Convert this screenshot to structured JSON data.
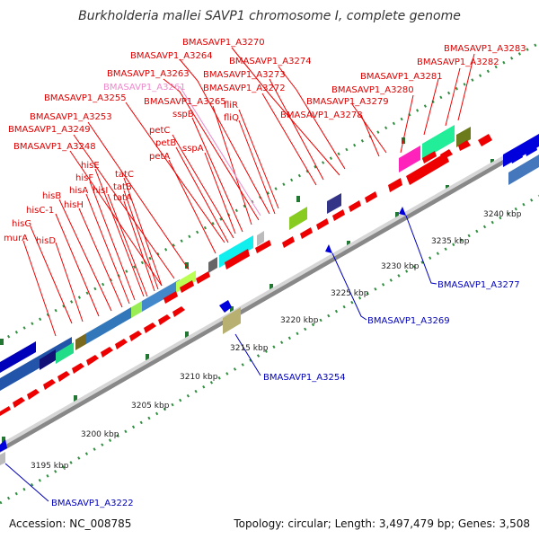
{
  "title": "Burkholderia mallei SAVP1 chromosome I, complete genome",
  "footer": {
    "accession": "Accession: NC_008785",
    "summary": "Topology: circular; Length: 3,497,479 bp; Genes: 3,508"
  },
  "colors": {
    "forward_gene": "#ee0000",
    "reverse_gene": "#0000cc",
    "red_label": "#dd0000",
    "blue_label": "#0000bb",
    "pink_label": "#ee88cc",
    "backbone": "#aaaaaa",
    "tick": "#228833"
  },
  "scale_labels": [
    "3195 kbp",
    "3200 kbp",
    "3205 kbp",
    "3210 kbp",
    "3215 kbp",
    "3220 kbp",
    "3225 kbp",
    "3230 kbp",
    "3235 kbp",
    "3240 kbp"
  ],
  "red_labels": [
    "BMASAVP1_A3270",
    "BMASAVP1_A3274",
    "BMASAVP1_A3264",
    "BMASAVP1_A3273",
    "BMASAVP1_A3263",
    "BMASAVP1_A3272",
    "BMASAVP1_A3261",
    "BMASAVP1_A3255",
    "BMASAVP1_A3265",
    "sspB",
    "BMASAVP1_A3253",
    "BMASAVP1_A3249",
    "BMASAVP1_A3248",
    "petC",
    "petB",
    "petA",
    "sspA",
    "fliR",
    "fliQ",
    "BMASAVP1_A3279",
    "BMASAVP1_A3278",
    "BMASAVP1_A3280",
    "BMASAVP1_A3281",
    "BMASAVP1_A3282",
    "BMASAVP1_A3283",
    "hisE",
    "hisF",
    "hisA",
    "hisI",
    "tatC",
    "tatB",
    "tatA",
    "hisB",
    "hisH",
    "hisC-1",
    "hisG",
    "murA",
    "hisD"
  ],
  "blue_labels": [
    "BMASAVP1_A3277",
    "BMASAVP1_A3269",
    "BMASAVP1_A3254",
    "BMASAVP1_A3222"
  ]
}
